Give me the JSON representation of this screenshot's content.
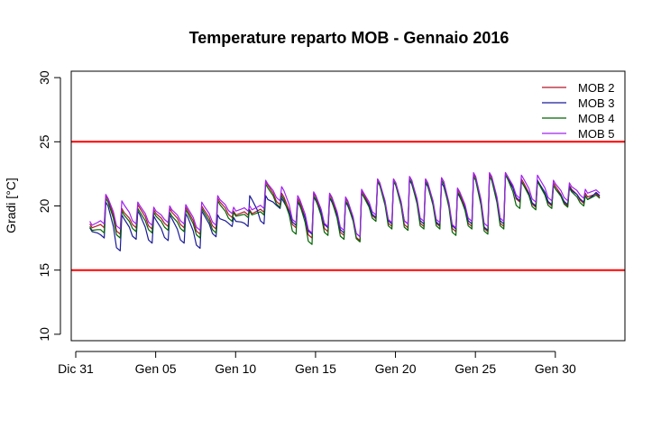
{
  "chart_data": {
    "type": "line",
    "title": "Temperature reparto MOB - Gennaio 2016",
    "ylabel": "Gradi [°C]",
    "xlabel": "",
    "xlim_day": [
      0,
      33
    ],
    "ylim": [
      9.5,
      30.5
    ],
    "x_tick_days": [
      0,
      5,
      10,
      15,
      20,
      25,
      30
    ],
    "x_tick_labels": [
      "Dic 31",
      "Gen 05",
      "Gen 10",
      "Gen 15",
      "Gen 20",
      "Gen 25",
      "Gen 30"
    ],
    "y_ticks": [
      10,
      15,
      20,
      25,
      30
    ],
    "y_tick_labels": [
      "10",
      "15",
      "20",
      "25",
      "30"
    ],
    "reference_lines": [
      {
        "y": 25,
        "color": "#ff0000"
      },
      {
        "y": 15,
        "color": "#ff0000"
      }
    ],
    "legend_position": "top-right",
    "grid": false,
    "daily_max_min": {
      "days": [
        1,
        2,
        3,
        4,
        5,
        6,
        7,
        8,
        9,
        10,
        11,
        12,
        13,
        14,
        15,
        16,
        17,
        18,
        19,
        20,
        21,
        22,
        23,
        24,
        25,
        26,
        27,
        28,
        29,
        30,
        31,
        32
      ]
    },
    "series": [
      {
        "name": "MOB 2",
        "color": "#b2182b",
        "max": [
          18.6,
          20.8,
          19.8,
          20.1,
          19.7,
          19.8,
          19.9,
          20.0,
          20.6,
          19.6,
          19.7,
          21.9,
          21.0,
          20.6,
          21.0,
          20.9,
          20.6,
          21.2,
          22.1,
          22.1,
          22.3,
          22.1,
          22.2,
          21.3,
          22.5,
          22.5,
          22.6,
          22.1,
          22.0,
          21.8,
          21.6,
          21.0
        ],
        "min": [
          18.3,
          17.8,
          18.3,
          18.2,
          18.4,
          18.3,
          17.8,
          18.2,
          19.1,
          19.3,
          19.5,
          20.1,
          18.3,
          17.5,
          18.0,
          17.7,
          17.3,
          19.0,
          18.4,
          18.3,
          18.4,
          18.4,
          18.0,
          18.4,
          18.0,
          18.4,
          20.3,
          19.9,
          20.0,
          20.0,
          20.2,
          20.7
        ]
      },
      {
        "name": "MOB 3",
        "color": "#1a1a99",
        "max": [
          18.3,
          20.3,
          19.3,
          19.6,
          19.2,
          19.3,
          19.4,
          19.6,
          19.3,
          19.1,
          20.8,
          20.8,
          20.6,
          20.3,
          20.7,
          20.6,
          20.3,
          21.0,
          21.9,
          21.9,
          22.0,
          21.8,
          21.8,
          21.0,
          22.3,
          22.3,
          22.4,
          21.9,
          22.0,
          21.6,
          21.5,
          20.8
        ],
        "min": [
          17.5,
          16.5,
          17.4,
          17.1,
          17.3,
          17.1,
          16.7,
          17.6,
          18.4,
          18.4,
          18.6,
          19.8,
          18.5,
          17.8,
          18.3,
          17.9,
          17.6,
          19.1,
          18.6,
          18.6,
          18.6,
          18.5,
          18.2,
          18.6,
          18.1,
          18.6,
          20.4,
          20.0,
          20.1,
          20.1,
          20.3,
          20.8
        ]
      },
      {
        "name": "MOB 4",
        "color": "#006400",
        "max": [
          18.4,
          20.6,
          19.6,
          19.8,
          19.5,
          19.5,
          19.7,
          19.8,
          20.4,
          19.5,
          19.6,
          21.7,
          20.8,
          20.4,
          20.8,
          20.7,
          20.4,
          21.0,
          21.9,
          21.9,
          22.1,
          21.9,
          22.0,
          21.1,
          22.3,
          22.3,
          22.4,
          21.9,
          21.9,
          21.6,
          21.4,
          20.8
        ],
        "min": [
          17.9,
          17.5,
          18.0,
          17.9,
          18.1,
          18.0,
          17.5,
          17.9,
          18.8,
          19.1,
          19.3,
          19.9,
          17.8,
          17.0,
          17.7,
          17.4,
          17.2,
          18.8,
          18.2,
          18.1,
          18.2,
          18.2,
          17.7,
          18.2,
          17.8,
          18.2,
          19.8,
          19.7,
          19.8,
          19.9,
          20.0,
          20.6
        ]
      },
      {
        "name": "MOB 5",
        "color": "#a020f0",
        "max": [
          18.8,
          20.9,
          20.4,
          20.3,
          19.9,
          20.0,
          20.1,
          20.3,
          20.8,
          19.9,
          20.0,
          22.0,
          21.5,
          20.8,
          21.1,
          21.0,
          20.7,
          21.3,
          22.1,
          22.1,
          22.3,
          22.1,
          22.2,
          21.4,
          22.6,
          22.6,
          22.6,
          22.4,
          22.4,
          22.0,
          21.8,
          21.3
        ],
        "min": [
          18.6,
          18.2,
          18.6,
          18.5,
          18.7,
          18.6,
          18.1,
          18.5,
          19.4,
          19.6,
          19.8,
          20.4,
          18.7,
          17.9,
          18.4,
          18.1,
          17.6,
          19.3,
          18.7,
          18.6,
          18.8,
          18.7,
          18.3,
          18.8,
          18.4,
          18.8,
          20.6,
          20.3,
          20.4,
          20.4,
          20.6,
          21.0
        ]
      }
    ]
  }
}
